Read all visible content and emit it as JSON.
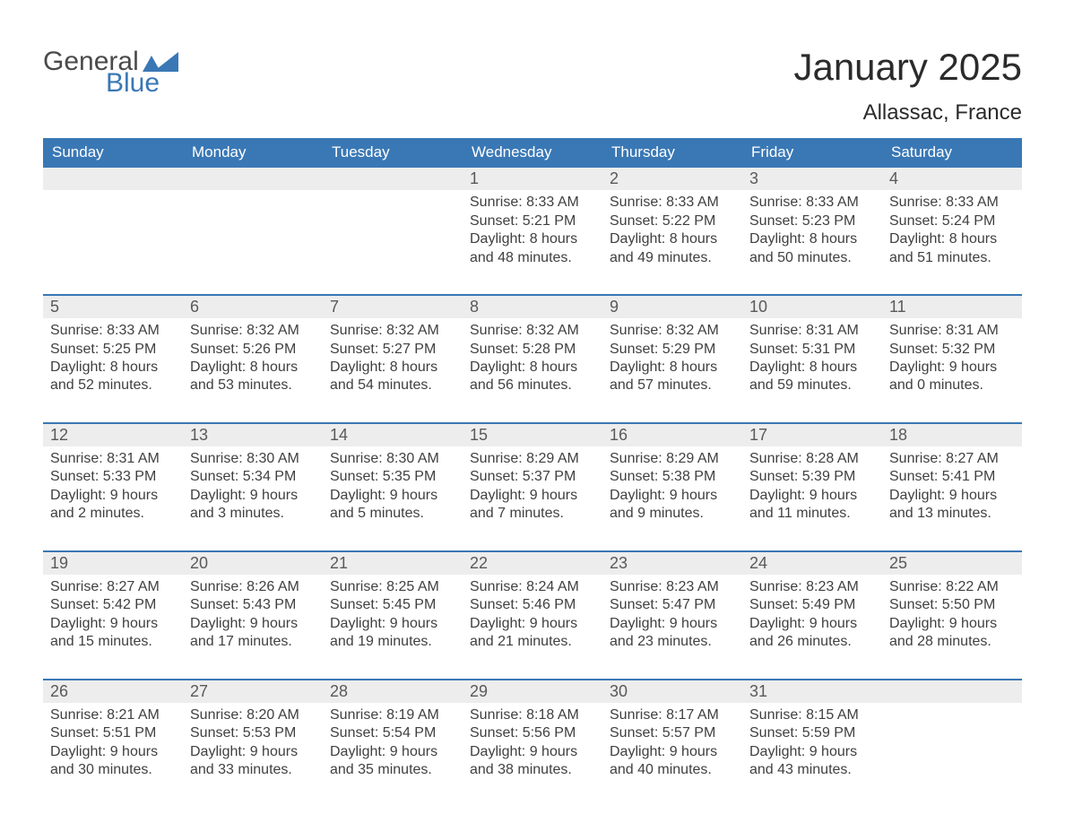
{
  "brand": {
    "word1": "General",
    "word2": "Blue",
    "word1_color": "#4a4a4a",
    "word2_color": "#3a78b5",
    "shape_color": "#3a78b5"
  },
  "title": "January 2025",
  "location": "Allassac, France",
  "colors": {
    "header_bg": "#3a78b5",
    "header_text": "#ffffff",
    "daynum_bg": "#ededed",
    "daynum_text": "#595959",
    "body_text": "#404040",
    "week_divider": "#3a78b5",
    "page_bg": "#ffffff"
  },
  "typography": {
    "title_fontsize": 42,
    "location_fontsize": 24,
    "dow_fontsize": 17,
    "daynum_fontsize": 18,
    "body_fontsize": 16
  },
  "days_of_week": [
    "Sunday",
    "Monday",
    "Tuesday",
    "Wednesday",
    "Thursday",
    "Friday",
    "Saturday"
  ],
  "weeks": [
    [
      null,
      null,
      null,
      {
        "num": "1",
        "sunrise": "8:33 AM",
        "sunset": "5:21 PM",
        "daylight_h": 8,
        "daylight_m": 48
      },
      {
        "num": "2",
        "sunrise": "8:33 AM",
        "sunset": "5:22 PM",
        "daylight_h": 8,
        "daylight_m": 49
      },
      {
        "num": "3",
        "sunrise": "8:33 AM",
        "sunset": "5:23 PM",
        "daylight_h": 8,
        "daylight_m": 50
      },
      {
        "num": "4",
        "sunrise": "8:33 AM",
        "sunset": "5:24 PM",
        "daylight_h": 8,
        "daylight_m": 51
      }
    ],
    [
      {
        "num": "5",
        "sunrise": "8:33 AM",
        "sunset": "5:25 PM",
        "daylight_h": 8,
        "daylight_m": 52
      },
      {
        "num": "6",
        "sunrise": "8:32 AM",
        "sunset": "5:26 PM",
        "daylight_h": 8,
        "daylight_m": 53
      },
      {
        "num": "7",
        "sunrise": "8:32 AM",
        "sunset": "5:27 PM",
        "daylight_h": 8,
        "daylight_m": 54
      },
      {
        "num": "8",
        "sunrise": "8:32 AM",
        "sunset": "5:28 PM",
        "daylight_h": 8,
        "daylight_m": 56
      },
      {
        "num": "9",
        "sunrise": "8:32 AM",
        "sunset": "5:29 PM",
        "daylight_h": 8,
        "daylight_m": 57
      },
      {
        "num": "10",
        "sunrise": "8:31 AM",
        "sunset": "5:31 PM",
        "daylight_h": 8,
        "daylight_m": 59
      },
      {
        "num": "11",
        "sunrise": "8:31 AM",
        "sunset": "5:32 PM",
        "daylight_h": 9,
        "daylight_m": 0
      }
    ],
    [
      {
        "num": "12",
        "sunrise": "8:31 AM",
        "sunset": "5:33 PM",
        "daylight_h": 9,
        "daylight_m": 2
      },
      {
        "num": "13",
        "sunrise": "8:30 AM",
        "sunset": "5:34 PM",
        "daylight_h": 9,
        "daylight_m": 3
      },
      {
        "num": "14",
        "sunrise": "8:30 AM",
        "sunset": "5:35 PM",
        "daylight_h": 9,
        "daylight_m": 5
      },
      {
        "num": "15",
        "sunrise": "8:29 AM",
        "sunset": "5:37 PM",
        "daylight_h": 9,
        "daylight_m": 7
      },
      {
        "num": "16",
        "sunrise": "8:29 AM",
        "sunset": "5:38 PM",
        "daylight_h": 9,
        "daylight_m": 9
      },
      {
        "num": "17",
        "sunrise": "8:28 AM",
        "sunset": "5:39 PM",
        "daylight_h": 9,
        "daylight_m": 11
      },
      {
        "num": "18",
        "sunrise": "8:27 AM",
        "sunset": "5:41 PM",
        "daylight_h": 9,
        "daylight_m": 13
      }
    ],
    [
      {
        "num": "19",
        "sunrise": "8:27 AM",
        "sunset": "5:42 PM",
        "daylight_h": 9,
        "daylight_m": 15
      },
      {
        "num": "20",
        "sunrise": "8:26 AM",
        "sunset": "5:43 PM",
        "daylight_h": 9,
        "daylight_m": 17
      },
      {
        "num": "21",
        "sunrise": "8:25 AM",
        "sunset": "5:45 PM",
        "daylight_h": 9,
        "daylight_m": 19
      },
      {
        "num": "22",
        "sunrise": "8:24 AM",
        "sunset": "5:46 PM",
        "daylight_h": 9,
        "daylight_m": 21
      },
      {
        "num": "23",
        "sunrise": "8:23 AM",
        "sunset": "5:47 PM",
        "daylight_h": 9,
        "daylight_m": 23
      },
      {
        "num": "24",
        "sunrise": "8:23 AM",
        "sunset": "5:49 PM",
        "daylight_h": 9,
        "daylight_m": 26
      },
      {
        "num": "25",
        "sunrise": "8:22 AM",
        "sunset": "5:50 PM",
        "daylight_h": 9,
        "daylight_m": 28
      }
    ],
    [
      {
        "num": "26",
        "sunrise": "8:21 AM",
        "sunset": "5:51 PM",
        "daylight_h": 9,
        "daylight_m": 30
      },
      {
        "num": "27",
        "sunrise": "8:20 AM",
        "sunset": "5:53 PM",
        "daylight_h": 9,
        "daylight_m": 33
      },
      {
        "num": "28",
        "sunrise": "8:19 AM",
        "sunset": "5:54 PM",
        "daylight_h": 9,
        "daylight_m": 35
      },
      {
        "num": "29",
        "sunrise": "8:18 AM",
        "sunset": "5:56 PM",
        "daylight_h": 9,
        "daylight_m": 38
      },
      {
        "num": "30",
        "sunrise": "8:17 AM",
        "sunset": "5:57 PM",
        "daylight_h": 9,
        "daylight_m": 40
      },
      {
        "num": "31",
        "sunrise": "8:15 AM",
        "sunset": "5:59 PM",
        "daylight_h": 9,
        "daylight_m": 43
      },
      null
    ]
  ],
  "labels": {
    "sunrise": "Sunrise:",
    "sunset": "Sunset:",
    "daylight": "Daylight:",
    "hours": "hours",
    "and": "and",
    "minutes": "minutes."
  }
}
